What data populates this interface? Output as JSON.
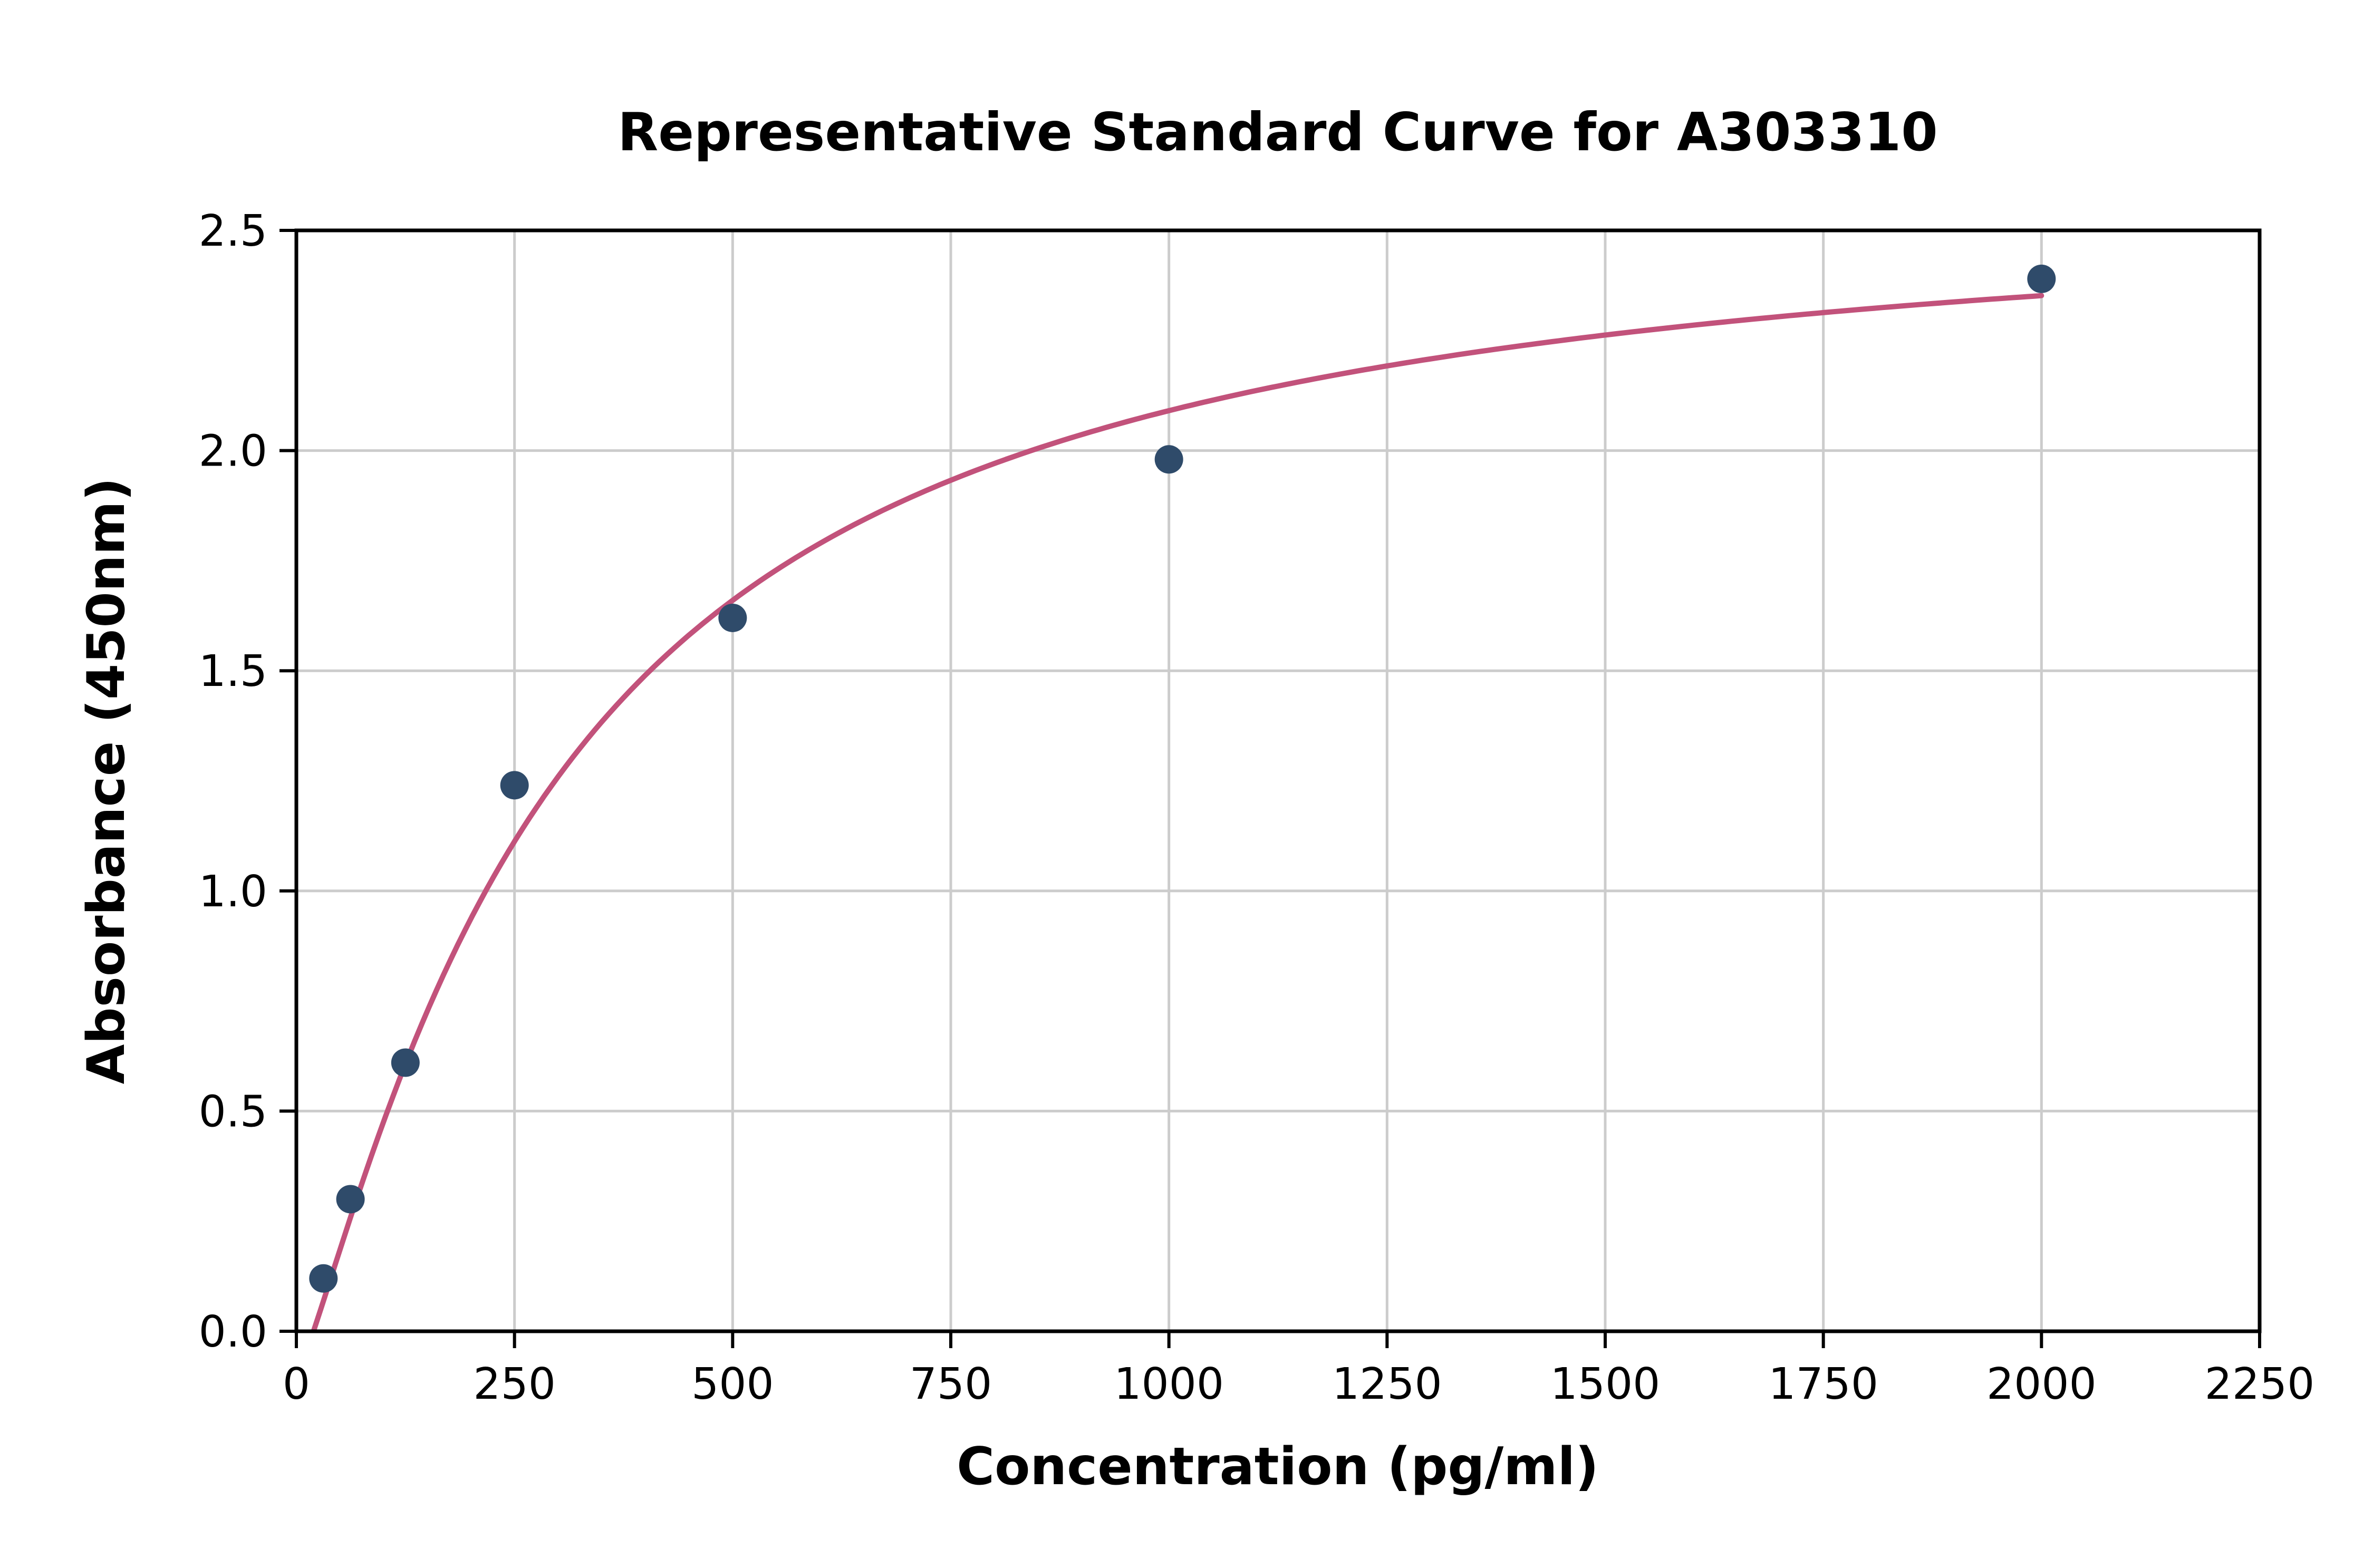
{
  "chart_data": {
    "type": "scatter",
    "title": "Representative Standard Curve for A303310",
    "xlabel": "Concentration (pg/ml)",
    "ylabel": "Absorbance (450nm)",
    "xlim": [
      0,
      2250
    ],
    "ylim": [
      0,
      2.5
    ],
    "x_ticks": [
      0,
      250,
      500,
      750,
      1000,
      1250,
      1500,
      1750,
      2000,
      2250
    ],
    "x_tick_labels": [
      "0",
      "250",
      "500",
      "750",
      "1000",
      "1250",
      "1500",
      "1750",
      "2000",
      "2250"
    ],
    "y_ticks": [
      0.0,
      0.5,
      1.0,
      1.5,
      2.0,
      2.5
    ],
    "y_tick_labels": [
      "0.0",
      "0.5",
      "1.0",
      "1.5",
      "2.0",
      "2.5"
    ],
    "grid": true,
    "legend": "none",
    "points": {
      "x": [
        31,
        62,
        125,
        250,
        500,
        1000,
        2000
      ],
      "y": [
        0.12,
        0.3,
        0.61,
        1.24,
        1.62,
        1.98,
        2.39
      ]
    },
    "fit_curve": {
      "model": "4PL",
      "a": -0.1,
      "b": 1.2,
      "c": 296.5,
      "d": 2.6,
      "x_range": [
        20,
        2000
      ]
    },
    "colors": {
      "point": "#2f4b6a",
      "curve": "#c2527b",
      "grid": "#cccccc",
      "axis": "#000000",
      "background": "#ffffff"
    }
  }
}
